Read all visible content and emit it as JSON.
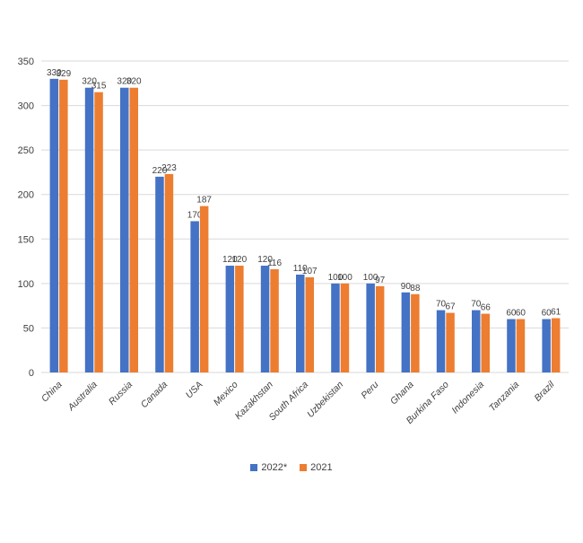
{
  "chart_data": {
    "type": "bar",
    "categories": [
      "China",
      "Australia",
      "Russia",
      "Canada",
      "USA",
      "Mexico",
      "Kazakhstan",
      "South Africa",
      "Uzbekistan",
      "Peru",
      "Ghana",
      "Burkina Faso",
      "Indonesia",
      "Tanzania",
      "Brazil"
    ],
    "series": [
      {
        "name": "2022*",
        "color": "#4472C4",
        "values": [
          330,
          320,
          320,
          220,
          170,
          120,
          120,
          110,
          100,
          100,
          90,
          70,
          70,
          60,
          60
        ]
      },
      {
        "name": "2021",
        "color": "#ED7D31",
        "values": [
          329,
          315,
          320,
          223,
          187,
          120,
          116,
          107,
          100,
          97,
          88,
          67,
          66,
          60,
          61
        ]
      }
    ],
    "ylim": [
      0,
      350
    ],
    "yticks": [
      0,
      50,
      100,
      150,
      200,
      250,
      300,
      350
    ],
    "grid": true,
    "legend_position": "bottom",
    "data_labels": true,
    "gridline_color": "#d9d9d9"
  }
}
